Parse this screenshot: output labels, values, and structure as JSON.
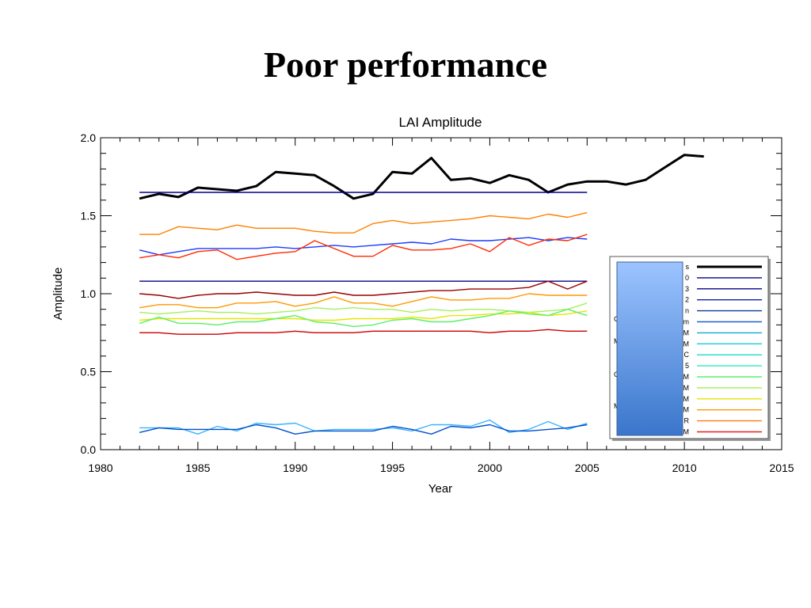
{
  "slide": {
    "title": "Poor performance"
  },
  "chart_data": {
    "type": "line",
    "title": "LAI Amplitude",
    "xlabel": "Year",
    "ylabel": "Amplitude",
    "xlim": [
      1980,
      2015
    ],
    "ylim": [
      0.0,
      2.0
    ],
    "xticks": [
      "1980",
      "1985",
      "1990",
      "1995",
      "2000",
      "2005",
      "2010",
      "2015"
    ],
    "yticks": [
      "0.0",
      "0.5",
      "1.0",
      "1.5",
      "2.0"
    ],
    "legend_position": "right",
    "legend_labels": [
      "s",
      "0",
      "3",
      "2",
      "n",
      "m",
      "M",
      "M",
      "C",
      "5",
      "M",
      "M",
      "M",
      "M",
      "R",
      "M"
    ],
    "legend_side_labels": [
      "C",
      "M",
      "C",
      "M"
    ],
    "series": [
      {
        "color": "#000000",
        "thick": true,
        "x": [
          1982,
          1983,
          1984,
          1985,
          1986,
          1987,
          1988,
          1989,
          1990,
          1991,
          1992,
          1993,
          1994,
          1995,
          1996,
          1997,
          1998,
          1999,
          2000,
          2001,
          2002,
          2003,
          2004,
          2005,
          2006,
          2007,
          2008,
          2009,
          2010,
          2011
        ],
        "y": [
          1.61,
          1.64,
          1.62,
          1.68,
          1.67,
          1.66,
          1.69,
          1.78,
          1.77,
          1.76,
          1.69,
          1.61,
          1.64,
          1.78,
          1.77,
          1.87,
          1.73,
          1.74,
          1.71,
          1.76,
          1.73,
          1.65,
          1.7,
          1.72,
          1.72,
          1.7,
          1.73,
          1.81,
          1.89,
          1.88
        ]
      },
      {
        "color": "#000088",
        "x": [
          1982,
          2005
        ],
        "y": [
          1.65,
          1.65
        ]
      },
      {
        "color": "#000088",
        "x": [
          1982,
          2005
        ],
        "y": [
          1.08,
          1.08
        ]
      },
      {
        "color": "#ff8000",
        "x": [
          1982,
          1983,
          1984,
          1985,
          1986,
          1987,
          1988,
          1989,
          1990,
          1991,
          1992,
          1993,
          1994,
          1995,
          1996,
          1997,
          1998,
          1999,
          2000,
          2001,
          2002,
          2003,
          2004,
          2005
        ],
        "y": [
          1.38,
          1.38,
          1.43,
          1.42,
          1.41,
          1.44,
          1.42,
          1.42,
          1.42,
          1.4,
          1.39,
          1.39,
          1.45,
          1.47,
          1.45,
          1.46,
          1.47,
          1.48,
          1.5,
          1.49,
          1.48,
          1.51,
          1.49,
          1.52
        ]
      },
      {
        "color": "#1a3cff",
        "x": [
          1982,
          1983,
          1984,
          1985,
          1986,
          1987,
          1988,
          1989,
          1990,
          1991,
          1992,
          1993,
          1994,
          1995,
          1996,
          1997,
          1998,
          1999,
          2000,
          2001,
          2002,
          2003,
          2004,
          2005
        ],
        "y": [
          1.28,
          1.25,
          1.27,
          1.29,
          1.29,
          1.29,
          1.29,
          1.3,
          1.29,
          1.3,
          1.31,
          1.3,
          1.31,
          1.32,
          1.33,
          1.32,
          1.35,
          1.34,
          1.34,
          1.35,
          1.36,
          1.34,
          1.36,
          1.35
        ]
      },
      {
        "color": "#ff2a00",
        "x": [
          1982,
          1983,
          1984,
          1985,
          1986,
          1987,
          1988,
          1989,
          1990,
          1991,
          1992,
          1993,
          1994,
          1995,
          1996,
          1997,
          1998,
          1999,
          2000,
          2001,
          2002,
          2003,
          2004,
          2005
        ],
        "y": [
          1.23,
          1.25,
          1.23,
          1.27,
          1.28,
          1.22,
          1.24,
          1.26,
          1.27,
          1.34,
          1.29,
          1.24,
          1.24,
          1.31,
          1.28,
          1.28,
          1.29,
          1.32,
          1.27,
          1.36,
          1.31,
          1.35,
          1.34,
          1.38
        ]
      },
      {
        "color": "#990000",
        "x": [
          1982,
          1983,
          1984,
          1985,
          1986,
          1987,
          1988,
          1989,
          1990,
          1991,
          1992,
          1993,
          1994,
          1995,
          1996,
          1997,
          1998,
          1999,
          2000,
          2001,
          2002,
          2003,
          2004,
          2005
        ],
        "y": [
          1.0,
          0.99,
          0.97,
          0.99,
          1.0,
          1.0,
          1.01,
          1.0,
          0.99,
          0.99,
          1.01,
          0.99,
          0.99,
          1.0,
          1.01,
          1.02,
          1.02,
          1.03,
          1.03,
          1.03,
          1.04,
          1.08,
          1.03,
          1.08
        ]
      },
      {
        "color": "#ff9900",
        "x": [
          1982,
          1983,
          1984,
          1985,
          1986,
          1987,
          1988,
          1989,
          1990,
          1991,
          1992,
          1993,
          1994,
          1995,
          1996,
          1997,
          1998,
          1999,
          2000,
          2001,
          2002,
          2003,
          2004,
          2005
        ],
        "y": [
          0.91,
          0.93,
          0.93,
          0.91,
          0.91,
          0.94,
          0.94,
          0.95,
          0.92,
          0.94,
          0.98,
          0.94,
          0.94,
          0.92,
          0.95,
          0.98,
          0.96,
          0.96,
          0.97,
          0.97,
          1.0,
          0.99,
          0.99,
          0.99
        ]
      },
      {
        "color": "#a6f05a",
        "x": [
          1982,
          1983,
          1984,
          1985,
          1986,
          1987,
          1988,
          1989,
          1990,
          1991,
          1992,
          1993,
          1994,
          1995,
          1996,
          1997,
          1998,
          1999,
          2000,
          2001,
          2002,
          2003,
          2004,
          2005
        ],
        "y": [
          0.88,
          0.87,
          0.88,
          0.89,
          0.88,
          0.88,
          0.87,
          0.88,
          0.89,
          0.91,
          0.9,
          0.91,
          0.9,
          0.9,
          0.88,
          0.9,
          0.89,
          0.9,
          0.9,
          0.89,
          0.88,
          0.89,
          0.9,
          0.94
        ]
      },
      {
        "color": "#e6e600",
        "x": [
          1982,
          1983,
          1984,
          1985,
          1986,
          1987,
          1988,
          1989,
          1990,
          1991,
          1992,
          1993,
          1994,
          1995,
          1996,
          1997,
          1998,
          1999,
          2000,
          2001,
          2002,
          2003,
          2004,
          2005
        ],
        "y": [
          0.83,
          0.84,
          0.84,
          0.84,
          0.84,
          0.84,
          0.84,
          0.84,
          0.84,
          0.83,
          0.83,
          0.84,
          0.84,
          0.84,
          0.85,
          0.84,
          0.86,
          0.86,
          0.87,
          0.87,
          0.88,
          0.86,
          0.87,
          0.89
        ]
      },
      {
        "color": "#5cf068",
        "x": [
          1982,
          1983,
          1984,
          1985,
          1986,
          1987,
          1988,
          1989,
          1990,
          1991,
          1992,
          1993,
          1994,
          1995,
          1996,
          1997,
          1998,
          1999,
          2000,
          2001,
          2002,
          2003,
          2004,
          2005
        ],
        "y": [
          0.81,
          0.85,
          0.81,
          0.81,
          0.8,
          0.82,
          0.82,
          0.84,
          0.86,
          0.82,
          0.81,
          0.79,
          0.8,
          0.83,
          0.84,
          0.82,
          0.82,
          0.84,
          0.86,
          0.89,
          0.87,
          0.86,
          0.9,
          0.86
        ]
      },
      {
        "color": "#cc0000",
        "x": [
          1982,
          1983,
          1984,
          1985,
          1986,
          1987,
          1988,
          1989,
          1990,
          1991,
          1992,
          1993,
          1994,
          1995,
          1996,
          1997,
          1998,
          1999,
          2000,
          2001,
          2002,
          2003,
          2004,
          2005
        ],
        "y": [
          0.75,
          0.75,
          0.74,
          0.74,
          0.74,
          0.75,
          0.75,
          0.75,
          0.76,
          0.75,
          0.75,
          0.75,
          0.76,
          0.76,
          0.76,
          0.76,
          0.76,
          0.76,
          0.75,
          0.76,
          0.76,
          0.77,
          0.76,
          0.76
        ]
      },
      {
        "color": "#3ab4ff",
        "x": [
          1982,
          1983,
          1984,
          1985,
          1986,
          1987,
          1988,
          1989,
          1990,
          1991,
          1992,
          1993,
          1994,
          1995,
          1996,
          1997,
          1998,
          1999,
          2000,
          2001,
          2002,
          2003,
          2004,
          2005
        ],
        "y": [
          0.14,
          0.14,
          0.14,
          0.1,
          0.15,
          0.12,
          0.17,
          0.16,
          0.17,
          0.12,
          0.13,
          0.13,
          0.13,
          0.14,
          0.12,
          0.16,
          0.16,
          0.15,
          0.19,
          0.11,
          0.13,
          0.18,
          0.13,
          0.17
        ]
      },
      {
        "color": "#0050cc",
        "x": [
          1982,
          1983,
          1984,
          1985,
          1986,
          1987,
          1988,
          1989,
          1990,
          1991,
          1992,
          1993,
          1994,
          1995,
          1996,
          1997,
          1998,
          1999,
          2000,
          2001,
          2002,
          2003,
          2004,
          2005
        ],
        "y": [
          0.11,
          0.14,
          0.13,
          0.13,
          0.13,
          0.13,
          0.16,
          0.14,
          0.1,
          0.12,
          0.12,
          0.12,
          0.12,
          0.15,
          0.13,
          0.1,
          0.15,
          0.14,
          0.16,
          0.12,
          0.12,
          0.13,
          0.14,
          0.16
        ]
      }
    ],
    "legend_line_colors": [
      "#000000",
      "#000088",
      "#00008b",
      "#0a1ea8",
      "#0a3c9c",
      "#1a60d8",
      "#10a8d8",
      "#18c8e0",
      "#20d8c8",
      "#30e8b8",
      "#58f070",
      "#a0f050",
      "#e6e600",
      "#ff9900",
      "#ff7a10",
      "#e62020"
    ]
  }
}
